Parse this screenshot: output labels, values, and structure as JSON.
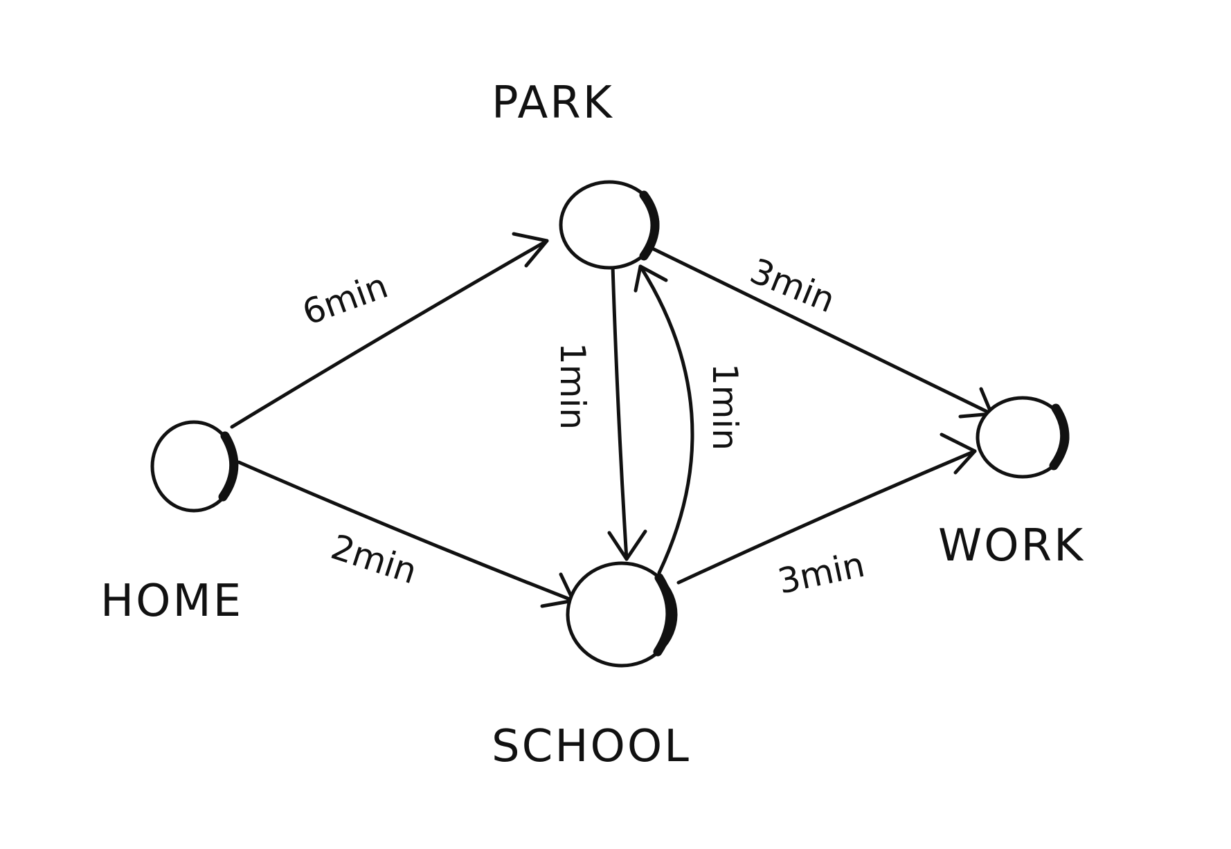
{
  "diagram": {
    "nodes": {
      "park": {
        "label": "PARK"
      },
      "home": {
        "label": "HOME"
      },
      "school": {
        "label": "SCHOOL"
      },
      "work": {
        "label": "WORK"
      }
    },
    "edges": {
      "home_park": {
        "from": "HOME",
        "to": "PARK",
        "label": "6min"
      },
      "home_school": {
        "from": "HOME",
        "to": "SCHOOL",
        "label": "2min"
      },
      "park_school": {
        "from": "PARK",
        "to": "SCHOOL",
        "label": "1min"
      },
      "school_park": {
        "from": "SCHOOL",
        "to": "PARK",
        "label": "1min"
      },
      "park_work": {
        "from": "PARK",
        "to": "WORK",
        "label": "3min"
      },
      "school_work": {
        "from": "SCHOOL",
        "to": "WORK",
        "label": "3min"
      }
    }
  }
}
